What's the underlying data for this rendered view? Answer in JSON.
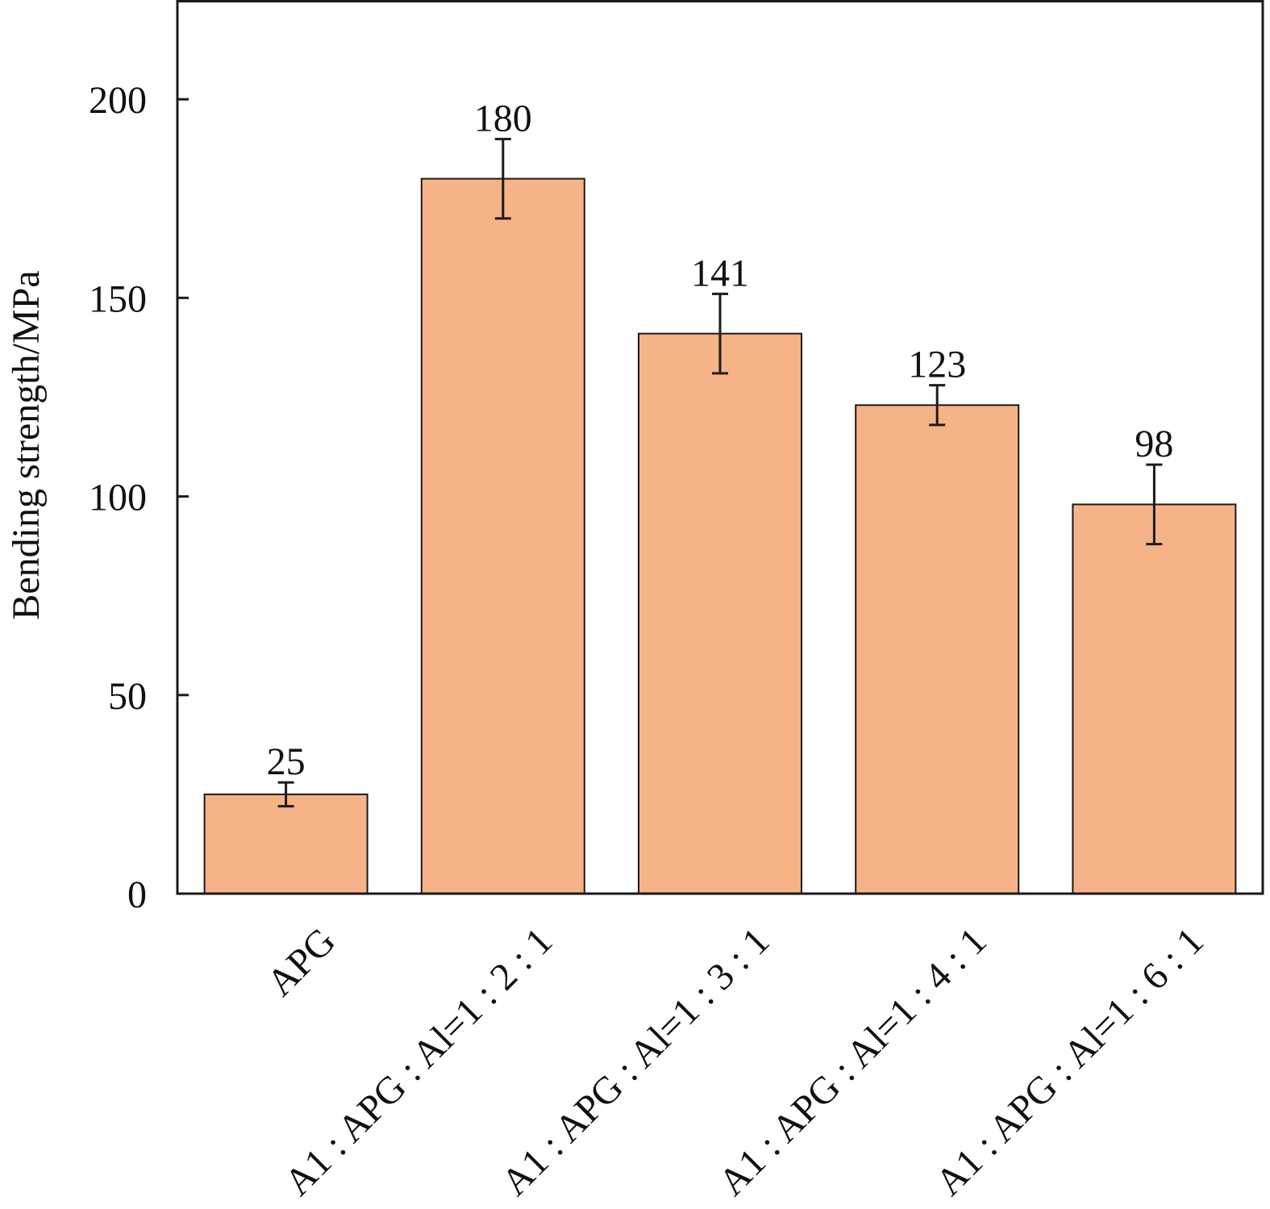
{
  "chart_data": {
    "type": "bar",
    "title": "",
    "xlabel": "",
    "ylabel": "Bending strength/MPa",
    "ylim": [
      0,
      225
    ],
    "yticks": [
      0,
      50,
      100,
      150,
      200
    ],
    "grid": false,
    "categories": [
      "APG",
      "A1 : APG : Al=1 : 2 : 1",
      "A1 : APG : Al=1 : 3 : 1",
      "A1 : APG : Al=1 : 4 : 1",
      "A1 : APG : Al=1 : 6 : 1"
    ],
    "values": [
      25,
      180,
      141,
      123,
      98
    ],
    "errors": [
      3,
      10,
      10,
      5,
      10
    ],
    "data_labels": [
      "25",
      "180",
      "141",
      "123",
      "98"
    ],
    "bar_color": "#F6B387",
    "bar_edge_color": "#1a1a1a",
    "error_bar_color": "#1a1a1a"
  }
}
